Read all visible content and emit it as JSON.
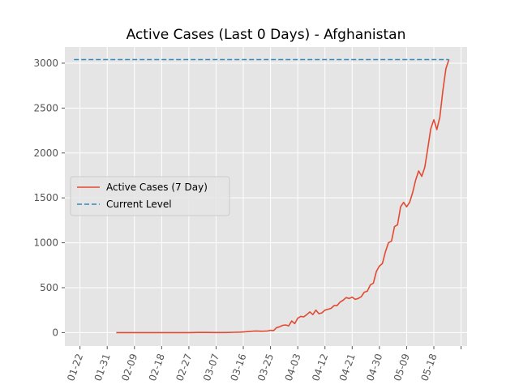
{
  "chart_data": {
    "type": "line",
    "title": "Active Cases (Last 0 Days) - Afghanistan",
    "xlabel": "",
    "ylabel": "",
    "x_tick_labels": [
      "01-22",
      "01-31",
      "02-09",
      "02-18",
      "02-27",
      "03-07",
      "03-16",
      "03-25",
      "04-03",
      "04-12",
      "04-21",
      "04-30",
      "05-09",
      "05-18"
    ],
    "x_tick_day_offsets": [
      0,
      9,
      18,
      27,
      36,
      45,
      54,
      63,
      72,
      81,
      90,
      99,
      108,
      117
    ],
    "xlim_day_offsets": [
      -5,
      128
    ],
    "y_ticks": [
      0,
      500,
      1000,
      1500,
      2000,
      2500,
      3000
    ],
    "ylim": [
      -150,
      3180
    ],
    "grid": true,
    "legend_position": "center-left",
    "series": [
      {
        "name": "Active Cases (7 Day)",
        "style": "solid",
        "color": "#E24A33",
        "x": [
          12,
          15,
          18,
          21,
          24,
          27,
          30,
          33,
          36,
          39,
          42,
          45,
          48,
          51,
          53,
          55,
          57,
          58,
          60,
          61,
          62,
          63,
          64,
          65,
          66,
          67,
          68,
          69,
          70,
          71,
          72,
          73,
          74,
          75,
          76,
          77,
          78,
          79,
          80,
          81,
          82,
          83,
          84,
          85,
          86,
          87,
          88,
          89,
          90,
          91,
          92,
          93,
          94,
          95,
          96,
          97,
          98,
          99,
          100,
          101,
          102,
          103,
          104,
          105,
          106,
          107,
          108,
          109,
          110,
          111,
          112,
          113,
          114,
          115,
          116,
          117,
          118,
          119,
          120,
          121,
          122
        ],
        "y": [
          0,
          0,
          0,
          0,
          0,
          0,
          0,
          0,
          0,
          2,
          2,
          1,
          1,
          3,
          5,
          10,
          15,
          18,
          15,
          16,
          18,
          25,
          22,
          55,
          65,
          80,
          85,
          75,
          130,
          100,
          160,
          180,
          175,
          200,
          230,
          200,
          250,
          210,
          220,
          250,
          260,
          270,
          300,
          300,
          340,
          360,
          390,
          380,
          395,
          370,
          380,
          400,
          450,
          460,
          530,
          550,
          680,
          740,
          770,
          900,
          1000,
          1020,
          1180,
          1200,
          1400,
          1450,
          1400,
          1450,
          1560,
          1700,
          1800,
          1740,
          1840,
          2050,
          2270,
          2370,
          2260,
          2400,
          2700,
          2940,
          3040
        ]
      },
      {
        "name": "Current Level",
        "style": "dashed",
        "color": "#348ABD",
        "x": [
          -2,
          122
        ],
        "y": [
          3040,
          3040
        ]
      }
    ]
  }
}
